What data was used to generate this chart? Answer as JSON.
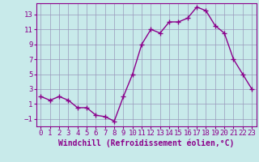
{
  "x": [
    0,
    1,
    2,
    3,
    4,
    5,
    6,
    7,
    8,
    9,
    10,
    11,
    12,
    13,
    14,
    15,
    16,
    17,
    18,
    19,
    20,
    21,
    22,
    23
  ],
  "y": [
    2.0,
    1.5,
    2.0,
    1.5,
    0.5,
    0.5,
    -0.5,
    -0.7,
    -1.3,
    2.0,
    5.0,
    9.0,
    11.0,
    10.5,
    12.0,
    12.0,
    12.5,
    14.0,
    13.5,
    11.5,
    10.5,
    7.0,
    5.0,
    3.0
  ],
  "line_color": "#8B008B",
  "marker": "+",
  "marker_size": 4,
  "bg_color": "#c8eaea",
  "grid_color": "#9999bb",
  "xlabel": "Windchill (Refroidissement éolien,°C)",
  "xlabel_color": "#8B008B",
  "xlabel_fontsize": 7,
  "tick_color": "#8B008B",
  "tick_fontsize": 6.5,
  "ylim": [
    -2,
    14.5
  ],
  "yticks": [
    -1,
    1,
    3,
    5,
    7,
    9,
    11,
    13
  ],
  "xticks": [
    0,
    1,
    2,
    3,
    4,
    5,
    6,
    7,
    8,
    9,
    10,
    11,
    12,
    13,
    14,
    15,
    16,
    17,
    18,
    19,
    20,
    21,
    22,
    23
  ],
  "line_width": 1.0,
  "spine_color": "#8B008B"
}
